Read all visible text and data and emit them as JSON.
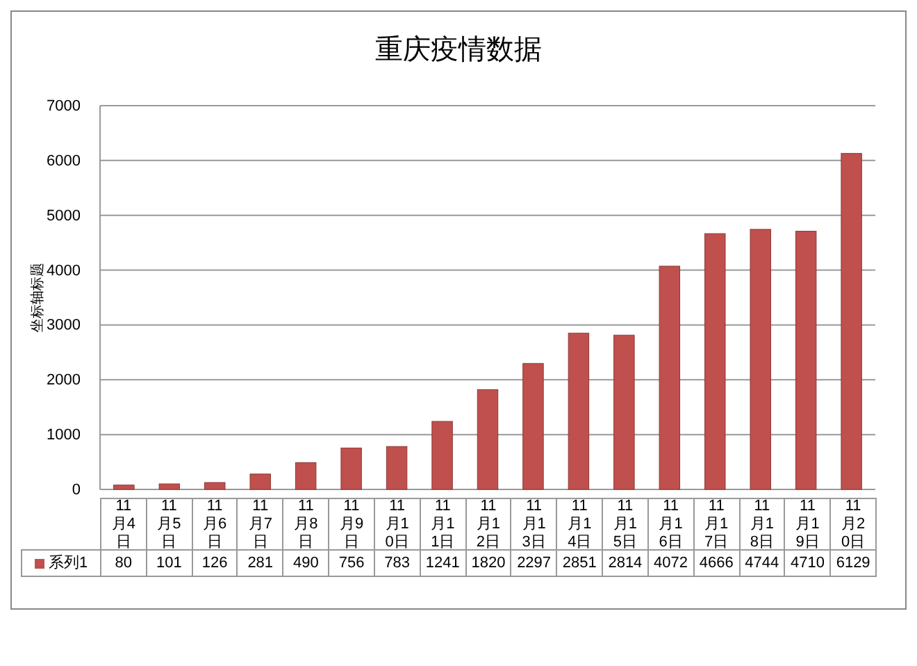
{
  "chart_data": {
    "type": "bar",
    "title": "重庆疫情数据",
    "ylabel": "坐标轴标题",
    "categories": [
      "11月4日",
      "11月5日",
      "11月6日",
      "11月7日",
      "11月8日",
      "11月9日",
      "11月10日",
      "11月11日",
      "11月12日",
      "11月13日",
      "11月14日",
      "11月15日",
      "11月16日",
      "11月17日",
      "11月18日",
      "11月19日",
      "11月20日"
    ],
    "series": [
      {
        "name": "系列1",
        "color": "#c0504d",
        "values": [
          80,
          101,
          126,
          281,
          490,
          756,
          783,
          1241,
          1820,
          2297,
          2851,
          2814,
          4072,
          4666,
          4744,
          4710,
          6129
        ]
      }
    ],
    "ylim": [
      0,
      7000
    ],
    "yticks": [
      0,
      1000,
      2000,
      3000,
      4000,
      5000,
      6000,
      7000
    ],
    "grid": "y",
    "data_labels": true,
    "legend": "bottom"
  }
}
